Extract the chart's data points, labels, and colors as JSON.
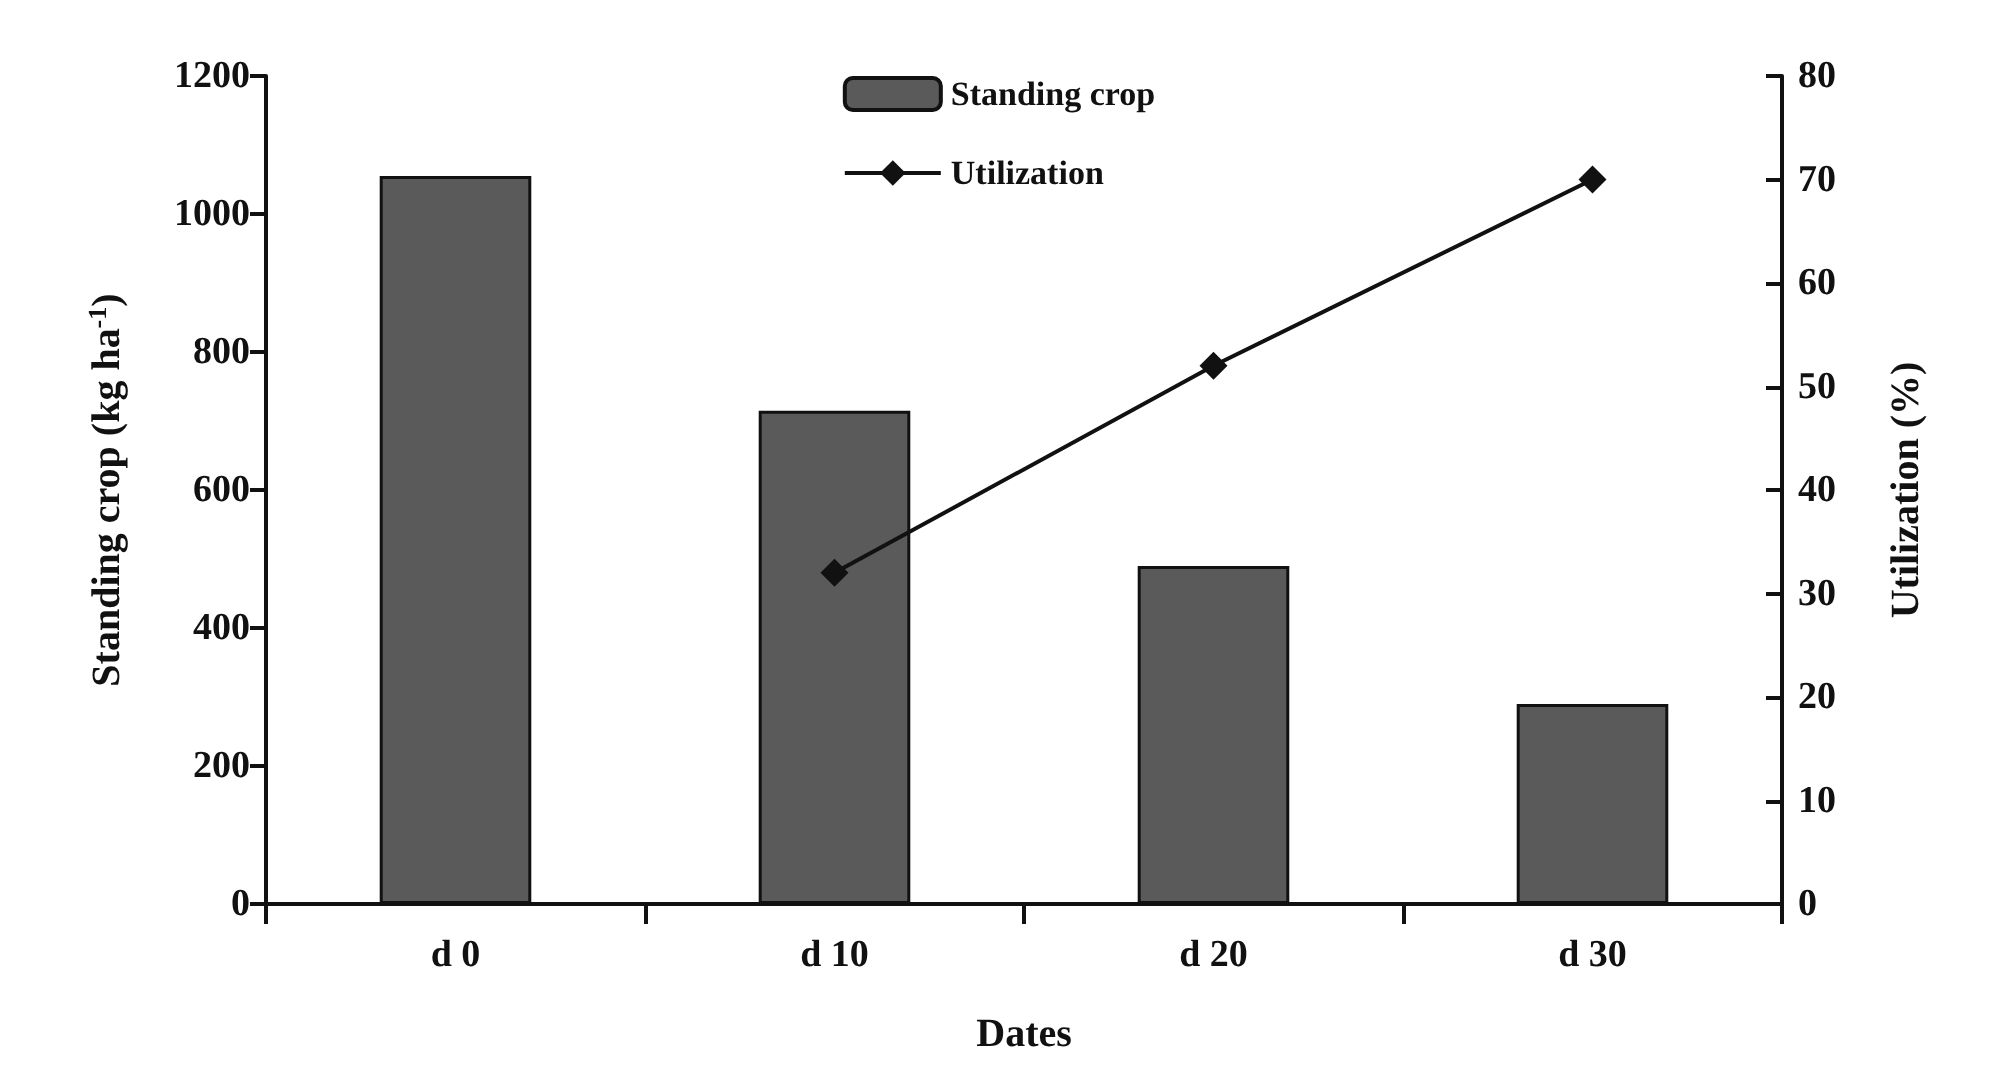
{
  "chart_data": {
    "type": "bar",
    "xlabel": "Dates",
    "ylabel": "Standing crop (kg ha$^{-1}$)",
    "y2label": "Utilization (%)",
    "categories": [
      "d 0",
      "d 10",
      "d 20",
      "d 30"
    ],
    "series": [
      {
        "name": "Standing crop",
        "color": "#5a5a5a",
        "values": [
          1055,
          715,
          490,
          290
        ]
      },
      {
        "name": "Utilization",
        "type": "line",
        "axis": "y2",
        "color": "#111111",
        "marker": "diamond",
        "values": [
          null,
          32,
          52,
          70
        ]
      }
    ],
    "ylim": [
      0,
      1200
    ],
    "yticks": [
      0,
      200,
      400,
      600,
      800,
      1000,
      1200
    ],
    "y2lim": [
      0,
      80
    ],
    "y2ticks": [
      0,
      10,
      20,
      30,
      40,
      50,
      60,
      70,
      80
    ],
    "grid": false,
    "legend": "top"
  }
}
